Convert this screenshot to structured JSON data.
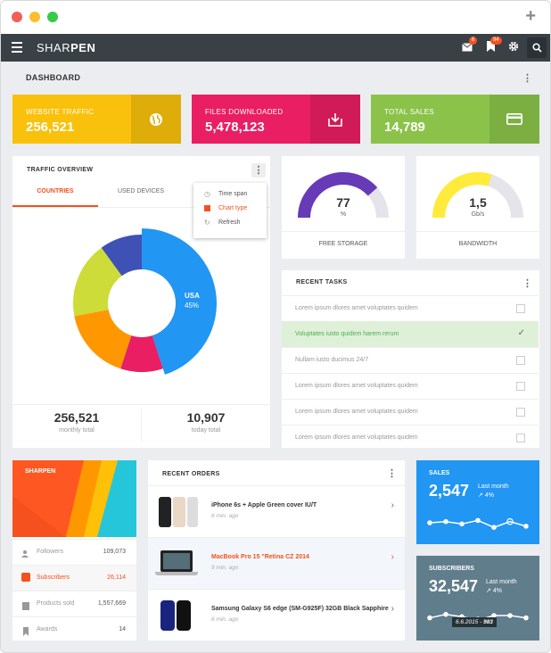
{
  "app": {
    "brand_light": "SHAR",
    "brand_bold": "PEN"
  },
  "nav": {
    "messages_badge": "6",
    "bookmarks_badge": "94"
  },
  "dashboard": {
    "title": "DASHBOARD"
  },
  "stats": [
    {
      "label": "WEBSITE TRAFFIC",
      "value": "256,521",
      "color": "#f9c10b",
      "icon": "globe-icon"
    },
    {
      "label": "FILES DOWNLOADED",
      "value": "5,478,123",
      "color": "#e91e63",
      "icon": "download-icon"
    },
    {
      "label": "TOTAL SALES",
      "value": "14,789",
      "color": "#8bc34a",
      "icon": "credit-card-icon"
    }
  ],
  "traffic": {
    "title": "TRAFFIC OVERVIEW",
    "tabs": [
      "COUNTRIES",
      "USED DEVICES"
    ],
    "menu": [
      "Time span",
      "Chart type",
      "Refresh"
    ],
    "highlight_label": "USA",
    "highlight_value": "45%",
    "slices": [
      {
        "value": 45,
        "color": "#2196f3"
      },
      {
        "value": 10,
        "color": "#e91e63"
      },
      {
        "value": 17,
        "color": "#ff9800"
      },
      {
        "value": 18,
        "color": "#cddc39"
      },
      {
        "value": 10,
        "color": "#3f51b5"
      }
    ],
    "footer": [
      {
        "value": "256,521",
        "label": "monthly total"
      },
      {
        "value": "10,907",
        "label": "today total"
      }
    ]
  },
  "gauges": [
    {
      "value": "77",
      "unit": "%",
      "label": "FREE STORAGE",
      "fraction": 0.77,
      "color": "#673ab7"
    },
    {
      "value": "1,5",
      "unit": "Gb/s",
      "label": "BANDWIDTH",
      "fraction": 0.6,
      "color": "#ffeb3b"
    }
  ],
  "tasks": {
    "title": "RECENT TASKS",
    "items": [
      {
        "text": "Lorem ipsum dlores amet voluptates quidem",
        "done": false
      },
      {
        "text": "Voluptates iusto quidem harem rerum",
        "done": true
      },
      {
        "text": "Nullam iusto ducimus 24/7",
        "done": false
      },
      {
        "text": "Lorem ipsum dlores amet voluptates quidem",
        "done": false
      },
      {
        "text": "Lorem ipsum dlores amet voluptates quidem",
        "done": false
      },
      {
        "text": "Lorem ipsum dlores amet voluptates quidem",
        "done": false
      }
    ]
  },
  "social": {
    "title": "SHARPEN",
    "rows": [
      {
        "label": "Followers",
        "value": "109,073",
        "icon": "users-icon"
      },
      {
        "label": "Subscribers",
        "value": "26,114",
        "icon": "subscribers-icon"
      },
      {
        "label": "Products sold",
        "value": "1,557,669",
        "icon": "clipboard-icon"
      },
      {
        "label": "Awards",
        "value": "14",
        "icon": "bookmark-icon"
      }
    ]
  },
  "orders": {
    "title": "RECENT ORDERS",
    "items": [
      {
        "name": "iPhone 6s + Apple Green cover IU/T",
        "time": "6 min. ago"
      },
      {
        "name": "MacBook Pro 15 \"Retina CZ 2014",
        "time": "9 min. ago"
      },
      {
        "name": "Samsung Galaxy S6 edge (SM-G925F) 32GB Black Sapphire",
        "time": "6 min. ago"
      }
    ]
  },
  "sales": {
    "title": "SALES",
    "value": "2,547",
    "sub": "Last month",
    "trend": "4%",
    "color": "#2196f3",
    "spark": [
      0.5,
      0.55,
      0.45,
      0.6,
      0.3,
      0.55,
      0.35
    ]
  },
  "subscribers": {
    "title": "SUBSCRIBERS",
    "value": "32,547",
    "sub": "Last month",
    "trend": "4%",
    "color": "#607d8b",
    "tooltip_date": "6.6.2015 - ",
    "tooltip_value": "983",
    "spark": [
      0.4,
      0.55,
      0.45,
      0.3,
      0.5,
      0.5,
      0.4
    ]
  }
}
